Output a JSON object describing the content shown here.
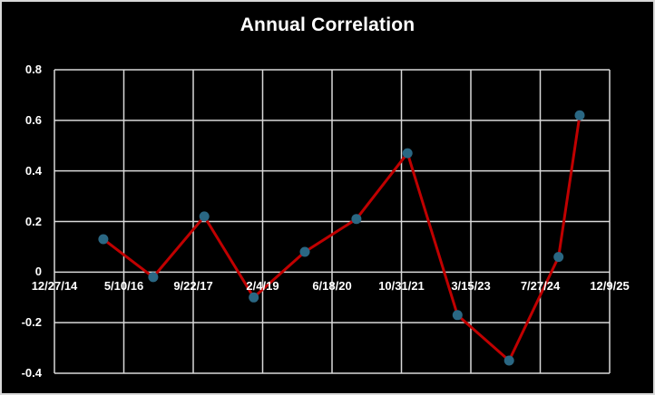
{
  "window": {
    "background": "#000000",
    "border_color": "#d9d9d9",
    "text_color": "#ffffff",
    "gridline_color": "#d9d9d9"
  },
  "chart_data": {
    "type": "line",
    "title": "Annual Correlation",
    "legend": "none",
    "grid": true,
    "x_axis": {
      "type": "date",
      "tick_labels": [
        "12/27/14",
        "5/10/16",
        "9/22/17",
        "2/4/19",
        "6/18/20",
        "10/31/21",
        "3/15/23",
        "7/27/24",
        "12/9/25"
      ]
    },
    "y_axis": {
      "min": -0.4,
      "max": 0.8,
      "tick_step": 0.2,
      "ticks": [
        {
          "label": "0.8",
          "v": 0.8
        },
        {
          "label": "0.6",
          "v": 0.6
        },
        {
          "label": "0.4",
          "v": 0.4
        },
        {
          "label": "0.2",
          "v": 0.2
        },
        {
          "label": "0",
          "v": 0.0
        },
        {
          "label": "-0.2",
          "v": -0.2
        },
        {
          "label": "-0.4",
          "v": -0.4
        }
      ]
    },
    "series": [
      {
        "name": "Annual Correlation",
        "line_color": "#c00000",
        "marker_color": "#2a6783",
        "points": [
          {
            "x_frac": 0.088,
            "y": 0.13
          },
          {
            "x_frac": 0.178,
            "y": -0.02
          },
          {
            "x_frac": 0.27,
            "y": 0.22
          },
          {
            "x_frac": 0.359,
            "y": -0.1
          },
          {
            "x_frac": 0.451,
            "y": 0.08
          },
          {
            "x_frac": 0.544,
            "y": 0.21
          },
          {
            "x_frac": 0.636,
            "y": 0.47
          },
          {
            "x_frac": 0.726,
            "y": -0.17
          },
          {
            "x_frac": 0.819,
            "y": -0.35
          },
          {
            "x_frac": 0.908,
            "y": 0.06
          },
          {
            "x_frac": 0.946,
            "y": 0.62
          }
        ]
      }
    ]
  }
}
